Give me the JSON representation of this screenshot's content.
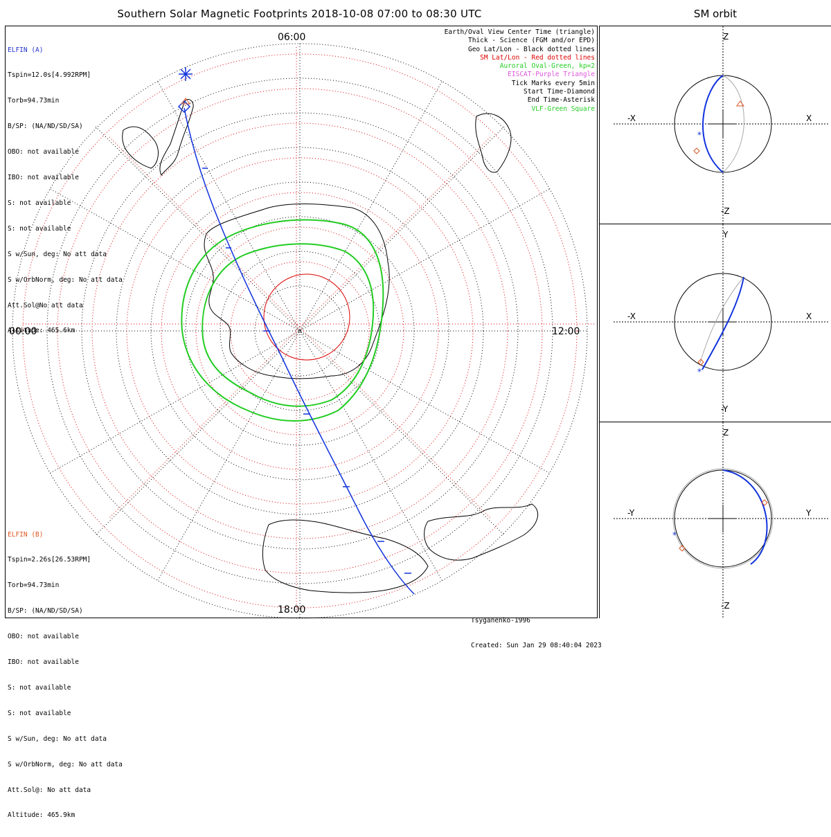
{
  "title": "Southern Solar Magnetic Footprints 2018-10-08 07:00 to 08:30 UTC",
  "orbit_title": "SM orbit",
  "mlt_labels": {
    "top": "06:00",
    "left": "00:00",
    "right": "12:00",
    "bottom": "18:00"
  },
  "elfin_a": {
    "name": "ELFIN (A)",
    "lines": [
      "Tspin=12.0s[4.992RPM]",
      "Torb=94.73min",
      "B/SP: (NA/ND/SD/SA)",
      "OBO: not available",
      "IBO: not available",
      "S: not available",
      "S: not available",
      "S w/Sun, deg: No att data",
      "S w/OrbNorm, deg: No att data",
      "Att.Sol@No att data",
      "Altitude: 465.6km"
    ]
  },
  "elfin_b": {
    "name": "ELFIN (B)",
    "lines": [
      "Tspin=2.26s[26.53RPM]",
      "Torb=94.73min",
      "B/SP: (NA/ND/SD/SA)",
      "OBO: not available",
      "IBO: not available",
      "S: not available",
      "S: not available",
      "S w/Sun, deg: No att data",
      "S w/OrbNorm, deg: No att data",
      "Att.Sol@: No att data",
      "Altitude: 465.9km"
    ]
  },
  "legend": [
    {
      "text": "Earth/Oval View Center Time (triangle)",
      "color": "#000000"
    },
    {
      "text": "Thick - Science (FGM and/or EPD)",
      "color": "#000000"
    },
    {
      "text": "Geo Lat/Lon - Black dotted lines",
      "color": "#000000"
    },
    {
      "text": "SM Lat/Lon - Red dotted lines",
      "color": "#dd0000"
    },
    {
      "text": "Auroral Oval-Green, kp=2",
      "color": "#22cc22"
    },
    {
      "text": "EISCAT-Purple Triangle",
      "color": "#dd55dd"
    },
    {
      "text": "Tick Marks every 5min",
      "color": "#000000"
    },
    {
      "text": "Start Time-Diamond",
      "color": "#000000"
    },
    {
      "text": "End Time-Asterisk",
      "color": "#000000"
    },
    {
      "text": "VLF-Green Square",
      "color": "#22cc22"
    }
  ],
  "credits": {
    "model": "Tsyganenko-1996",
    "created": "Created: Sun Jan 29 08:40:04 2023"
  },
  "orbit_panels": [
    {
      "top": "Z",
      "bottom": "-Z",
      "left": "-X",
      "right": "X"
    },
    {
      "top": "Y",
      "bottom": "-Y",
      "left": "-X",
      "right": "X"
    },
    {
      "top": "Z",
      "bottom": "-Z",
      "left": "-Y",
      "right": "Y"
    }
  ],
  "colors": {
    "elfin_a_track": "#1133dd",
    "elfin_b_track": "#dd5522",
    "sm_grid": "#dd0000",
    "auroral_oval": "#22cc22",
    "eiscat": "#dd55dd",
    "orbit_gray": "#aaaaaa"
  }
}
